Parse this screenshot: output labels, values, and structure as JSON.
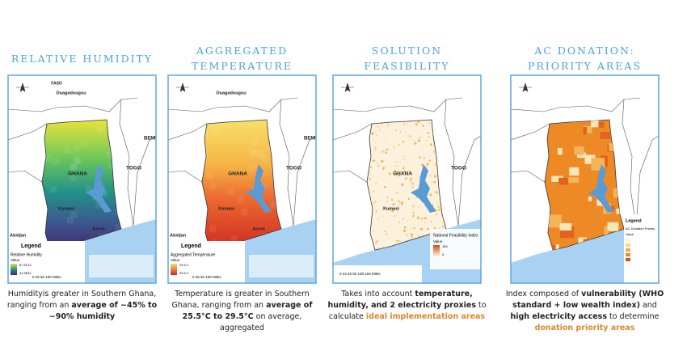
{
  "panels": [
    {
      "title": "RELATIVE HUMIDITY",
      "fill": "humidity",
      "labels": {
        "faso": "FASO",
        "ouaga": "Ouagadougou",
        "ghana": "GHANA",
        "togo": "TOGO",
        "benin": "BENI",
        "kumasi": "Kumasi",
        "accra": "Accra",
        "abidjan": "Abidjan"
      },
      "legend": {
        "heading": "Legend",
        "title": "Relative Humidity",
        "sub": "Value",
        "high": "87.5213",
        "low": "44.9634",
        "scale": "0  25  50     100 Miles"
      },
      "caption": [
        {
          "text": "Humidityis greater in Southern Ghana, ranging from an ",
          "style": "normal"
        },
        {
          "text": "average of ~45% to ~90% humidity",
          "style": "bold"
        }
      ]
    },
    {
      "title": "AGGREGATED TEMPERATURE",
      "fill": "temperature",
      "labels": {
        "ouaga": "Ouagadougou",
        "ghana": "GHANA",
        "togo": "TOGO",
        "benin": "BENI",
        "kumasi": "Kumasi",
        "accra": "Accra",
        "abidjan": "Abidjan"
      },
      "legend": {
        "heading": "Legend",
        "title": "Aggregated Temperature",
        "sub": "Value",
        "high": "29.5 C",
        "low": "25.5 C",
        "scale": "0  25  50     100 Miles"
      },
      "caption": [
        {
          "text": "Temperature is greater in Southern Ghana, ranging from an ",
          "style": "normal"
        },
        {
          "text": "average of 25.5°C to 29.5°C",
          "style": "bold"
        },
        {
          "text": " on average, aggregated",
          "style": "normal"
        }
      ]
    },
    {
      "title": "SOLUTION FEASIBILITY",
      "fill": "feasibility",
      "labels": {
        "ghana": "GHANA",
        "togo": "TOGO",
        "kumasi": "Kumasi"
      },
      "legend": {
        "title": "National Feasibility Index",
        "sub": "Value",
        "high": "184",
        "low": "0",
        "scale": "0  23  46    92    138    184 Miles"
      },
      "caption": [
        {
          "text": "Takes into account ",
          "style": "normal"
        },
        {
          "text": "temperature, humidity, and 2 electricity proxies",
          "style": "bold"
        },
        {
          "text": " to calculate ",
          "style": "normal"
        },
        {
          "text": "ideal implementation areas",
          "style": "highlight"
        }
      ]
    },
    {
      "title": "AC DONATION: PRIORITY AREAS",
      "fill": "priority",
      "labels": {},
      "legend": {
        "heading": "Legend",
        "title": "AC Donation Priority",
        "sub": "Value"
      },
      "caption": [
        {
          "text": "Index composed of ",
          "style": "normal"
        },
        {
          "text": "vulnerability (WHO standard + low wealth index)",
          "style": "bold"
        },
        {
          "text": " and ",
          "style": "normal"
        },
        {
          "text": "high electricity access",
          "style": "bold"
        },
        {
          "text": " to determine ",
          "style": "normal"
        },
        {
          "text": "donation priority areas",
          "style": "highlight"
        }
      ]
    }
  ]
}
